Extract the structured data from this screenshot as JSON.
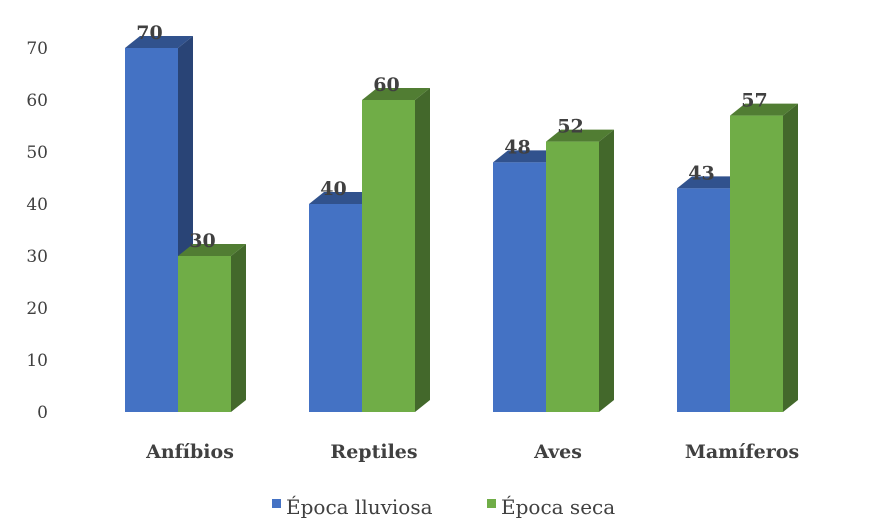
{
  "chart_data": {
    "type": "bar",
    "style": "3d-clustered",
    "categories": [
      "Anfíbios",
      "Reptiles",
      "Aves",
      "Mamíferos"
    ],
    "series": [
      {
        "name": "Época lluviosa",
        "values": [
          70,
          40,
          48,
          43
        ],
        "color": "#4472C4"
      },
      {
        "name": "Época seca",
        "values": [
          30,
          60,
          52,
          57
        ],
        "color": "#70AD47"
      }
    ],
    "yticks": [
      "0",
      "10",
      "20",
      "30",
      "40",
      "50",
      "60",
      "70"
    ],
    "ylim": [
      0,
      70
    ],
    "grid": false,
    "legend": "bottom"
  }
}
